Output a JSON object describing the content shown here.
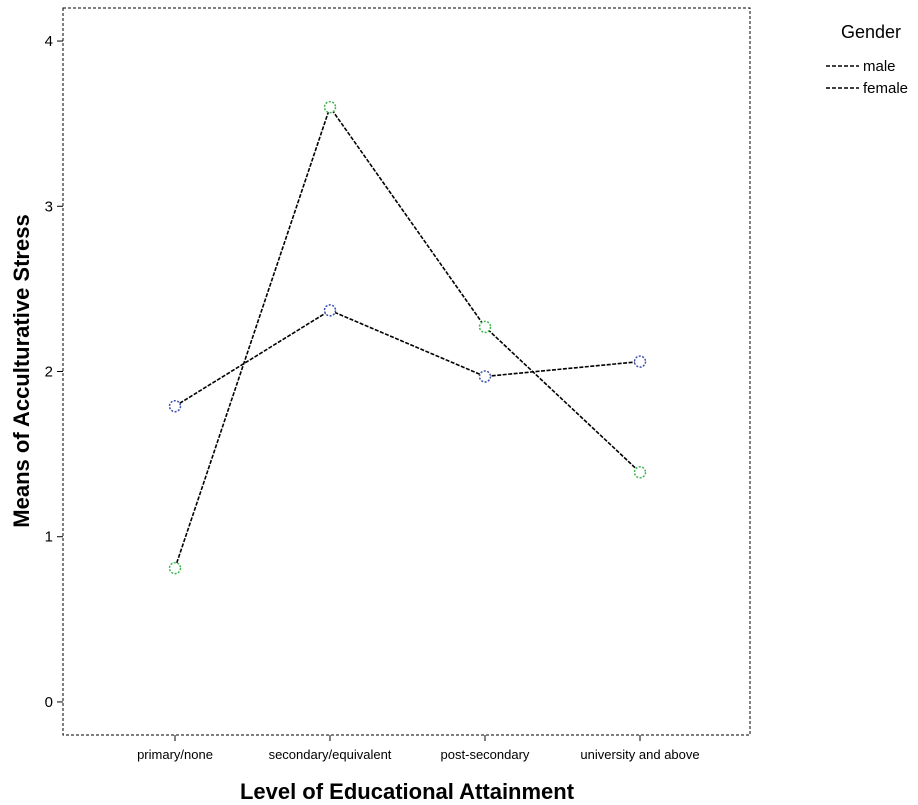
{
  "chart_data": {
    "type": "line",
    "xlabel": "Level of Educational Attainment",
    "ylabel": "Means of Acculturative Stress",
    "categories": [
      "primary/none",
      "secondary/equivalent",
      "post-secondary",
      "university and above"
    ],
    "ylim": [
      -0.2,
      4.2
    ],
    "yticks": [
      0,
      1,
      2,
      3,
      4
    ],
    "grid": false,
    "legend": {
      "title": "Gender",
      "placement": "top-right outside plot"
    },
    "series": [
      {
        "name": "male",
        "values": [
          1.79,
          2.37,
          1.97,
          2.06
        ],
        "marker_color": "#3a4fb0"
      },
      {
        "name": "female",
        "values": [
          0.81,
          3.6,
          2.27,
          1.39
        ],
        "marker_color": "#3cb54a"
      }
    ]
  }
}
